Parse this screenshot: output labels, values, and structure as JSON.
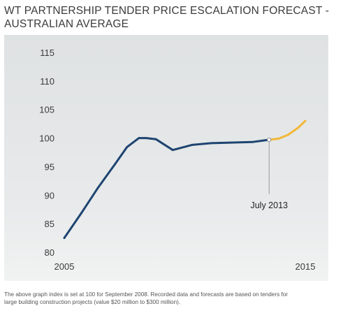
{
  "title_line1": "WT PARTNERSHIP TENDER PRICE ESCALATION FORECAST -",
  "title_line2": "AUSTRALIAN AVERAGE",
  "footnote_line1": "The above graph index is set at 100 for September 2008. Recorded data and forecasts are based on tenders for",
  "footnote_line2": "large building construction projects (value $20 million to $300 million).",
  "colors": {
    "recorded": "#1e4471",
    "forecast": "#f2b836",
    "panel": "#e4e6e7"
  },
  "chart_data": {
    "type": "line",
    "ylim": [
      80,
      115
    ],
    "yticks": [
      "80",
      "85",
      "90",
      "95",
      "100",
      "105",
      "110",
      "115"
    ],
    "xlim": [
      2005,
      2015
    ],
    "xticks": [
      "2005",
      "2015"
    ],
    "grid": false,
    "series": [
      {
        "kind": "recorded",
        "x": [
          2005.0,
          2005.7,
          2006.4,
          2007.1,
          2007.6,
          2008.1,
          2008.4,
          2008.8,
          2009.5,
          2010.3,
          2011.1,
          2011.9,
          2012.8,
          2013.5
        ],
        "y": [
          82.5,
          86.8,
          91.3,
          95.4,
          98.4,
          100.0,
          100.0,
          99.8,
          97.9,
          98.8,
          99.1,
          99.2,
          99.3,
          99.7
        ]
      },
      {
        "kind": "forecast",
        "x": [
          2013.5,
          2013.9,
          2014.3,
          2014.7,
          2015.0
        ],
        "y": [
          99.7,
          99.9,
          100.6,
          101.8,
          103.0
        ]
      }
    ],
    "annotation": {
      "label": "July 2013",
      "x": 2013.5,
      "y": 99.7
    }
  }
}
